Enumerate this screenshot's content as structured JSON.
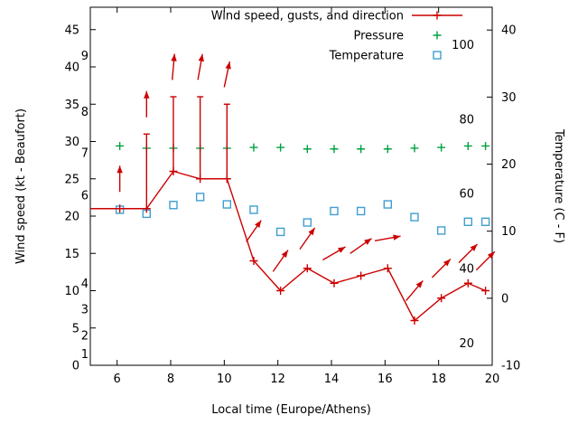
{
  "chart_data": {
    "type": "line",
    "title": "",
    "x_axis": {
      "label": "Local time (Europe/Athens)",
      "range": [
        5,
        20
      ],
      "ticks": [
        6,
        8,
        10,
        12,
        14,
        16,
        18,
        20
      ]
    },
    "y_left_axis": {
      "label": "Wind speed (kt - Beaufort)",
      "range": [
        0,
        48
      ],
      "ticks": [
        0,
        5,
        10,
        15,
        20,
        25,
        30,
        35,
        40,
        45
      ],
      "beaufort_scale_labels": [
        {
          "label": "9",
          "kt": 41.5
        },
        {
          "label": "8",
          "kt": 34
        },
        {
          "label": "7",
          "kt": 28.5
        },
        {
          "label": "6",
          "kt": 22.8
        },
        {
          "label": "4",
          "kt": 11
        },
        {
          "label": "3",
          "kt": 7.5
        },
        {
          "label": "2",
          "kt": 4
        },
        {
          "label": "1",
          "kt": 1.5
        }
      ]
    },
    "y_right_axis": {
      "label": "Temperature (C - F)",
      "range": [
        -10,
        43.4
      ],
      "ticks": [
        -10,
        0,
        10,
        20,
        30,
        40
      ],
      "fahrenheit_scale_labels": [
        {
          "label": "100",
          "c": 37.8
        },
        {
          "label": "80",
          "c": 26.7
        },
        {
          "label": "60",
          "c": 15.6
        },
        {
          "label": "40",
          "c": 4.4
        },
        {
          "label": "20",
          "c": -6.7
        }
      ]
    },
    "legend": [
      {
        "label": "Wind speed, gusts, and direction",
        "sample": "line-plus",
        "color": "#cc0000"
      },
      {
        "label": "Pressure",
        "sample": "plus",
        "color": "#00a040"
      },
      {
        "label": "Temperature",
        "sample": "square",
        "color": "#3f9fd0"
      }
    ],
    "x_hours": [
      6.1,
      7.1,
      8.1,
      9.1,
      10.1,
      11.1,
      12.1,
      13.1,
      14.1,
      15.1,
      16.1,
      17.1,
      18.1,
      19.1,
      19.75
    ],
    "wind": {
      "color": "#cc0000",
      "line_start_hour": 5,
      "line_start_kt": 21,
      "speed_kt": [
        21,
        21,
        26,
        25,
        25,
        14,
        10,
        13,
        11,
        12,
        13,
        6,
        9,
        11,
        10
      ],
      "gust_kt": [
        null,
        31,
        36,
        36,
        35,
        null,
        null,
        null,
        null,
        null,
        null,
        null,
        null,
        null,
        null
      ],
      "direction_deg_cw_from_up": [
        0,
        0,
        5,
        10,
        12,
        35,
        35,
        35,
        60,
        55,
        80,
        40,
        45,
        45,
        45
      ],
      "arrow_offset_kt": 4
    },
    "pressure": {
      "color": "#00a040",
      "plot_level_kt": [
        29.4,
        29.1,
        29.1,
        29.1,
        29.1,
        29.2,
        29.2,
        29.0,
        29.0,
        29.0,
        29.0,
        29.1,
        29.2,
        29.4,
        29.4
      ]
    },
    "temperature": {
      "color": "#3f9fd0",
      "celsius": [
        13.2,
        12.6,
        13.9,
        15.1,
        14.0,
        13.2,
        9.9,
        11.3,
        13.0,
        13.0,
        14.0,
        12.1,
        10.1,
        11.4,
        11.4
      ]
    }
  }
}
